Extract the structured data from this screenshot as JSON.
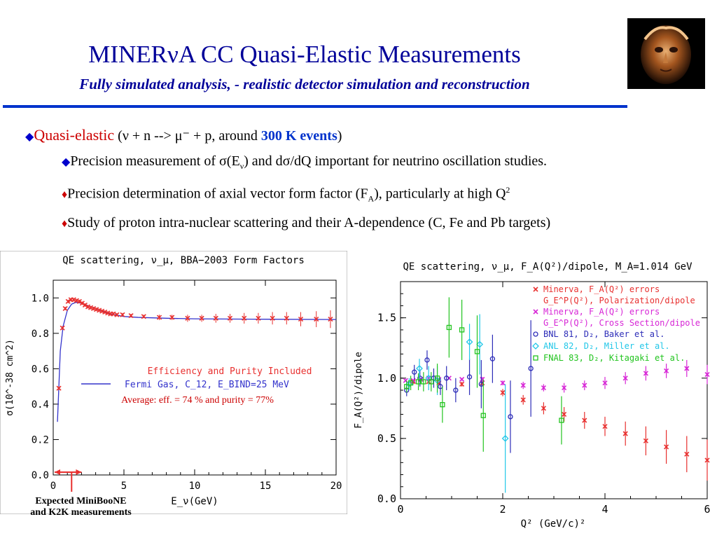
{
  "header": {
    "title": "MINERνA CC Quasi-Elastic Measurements",
    "subtitle": "Fully simulated analysis, - realistic detector simulation and reconstruction"
  },
  "bullets": {
    "main_label": "Quasi-elastic",
    "main_reaction": "(ν + n --> μ⁻ + p, around ",
    "main_events": "300 K events",
    "main_close": ")",
    "sub1_a": "Precision measurement of σ(E",
    "sub1_sub": "ν",
    "sub1_b": ") and dσ/dQ important for neutrino oscillation studies.",
    "sub2_a": "Precision determination of axial vector form factor (F",
    "sub2_sub": "A",
    "sub2_b": "), particularly at high Q",
    "sub2_sup": "2",
    "sub3": "Study of proton intra-nuclear scattering and their A-dependence (C, Fe and Pb targets)"
  },
  "annotation": {
    "line1": "Expected MiniBooNE",
    "line2": "and K2K measurements"
  },
  "chart_data": [
    {
      "type": "line",
      "title": "QE scattering, ν_μ, BBA−2003 Form Factors",
      "xlabel": "E_ν(GeV)",
      "ylabel": "σ(10^-38 cm^2)",
      "xlim": [
        0,
        20
      ],
      "ylim": [
        0,
        1.1
      ],
      "xticks": [
        "0",
        "5",
        "10",
        "15",
        "20"
      ],
      "yticks": [
        "0.0",
        "0.2",
        "0.4",
        "0.6",
        "0.8",
        "1.0"
      ],
      "xtick_values": [
        0,
        5,
        10,
        15,
        20
      ],
      "ytick_values": [
        0,
        0.2,
        0.4,
        0.6,
        0.8,
        1.0
      ],
      "legend": {
        "label1": "Efficiency and Purity Included",
        "label2": "Fermi Gas, C_12, E_BIND=25 MeV",
        "label3": "Average: eff. = 74 % and purity = 77%"
      },
      "colors": {
        "curve": "#3333cc",
        "points": "#e8302f",
        "legend_red": "#e8302f",
        "legend_blue": "#3333cc",
        "arrow": "#e8302f"
      },
      "curve": {
        "x": [
          0.3,
          0.5,
          0.7,
          1.0,
          1.3,
          1.6,
          2.0,
          3.0,
          4.0,
          5.0,
          6.0,
          8.0,
          10.0,
          14.0,
          20.0
        ],
        "y": [
          0.3,
          0.7,
          0.84,
          0.93,
          0.965,
          0.975,
          0.97,
          0.94,
          0.91,
          0.895,
          0.89,
          0.885,
          0.882,
          0.88,
          0.878
        ]
      },
      "series": [
        {
          "x": [
            0.4,
            0.65,
            0.85,
            1.05,
            1.25,
            1.45,
            1.65,
            1.85,
            2.05,
            2.25,
            2.45,
            2.65,
            2.85,
            3.05,
            3.25,
            3.45,
            3.65,
            3.85,
            4.05,
            4.25,
            4.5,
            4.9,
            5.5,
            6.4,
            7.5,
            8.4,
            9.5,
            10.5,
            11.5,
            12.5,
            13.5,
            14.5,
            15.5,
            16.5,
            17.5,
            18.6,
            19.6
          ],
          "y": [
            0.49,
            0.83,
            0.94,
            0.98,
            0.99,
            0.99,
            0.985,
            0.98,
            0.97,
            0.96,
            0.95,
            0.945,
            0.94,
            0.935,
            0.93,
            0.925,
            0.92,
            0.915,
            0.91,
            0.91,
            0.905,
            0.905,
            0.9,
            0.895,
            0.89,
            0.89,
            0.885,
            0.885,
            0.885,
            0.885,
            0.885,
            0.885,
            0.885,
            0.885,
            0.88,
            0.88,
            0.88
          ],
          "err": [
            0.01,
            0.01,
            0.01,
            0.01,
            0.01,
            0.01,
            0.01,
            0.01,
            0.01,
            0.01,
            0.01,
            0.01,
            0.01,
            0.01,
            0.01,
            0.01,
            0.01,
            0.01,
            0.01,
            0.01,
            0.01,
            0.01,
            0.01,
            0.01,
            0.015,
            0.015,
            0.02,
            0.02,
            0.025,
            0.025,
            0.03,
            0.03,
            0.035,
            0.035,
            0.04,
            0.045,
            0.05
          ]
        }
      ],
      "arrow_range": [
        0,
        2
      ]
    },
    {
      "type": "scatter",
      "title": "QE scattering, ν_μ, F_A(Q²)/dipole, M_A=1.014 GeV",
      "xlabel": "Q² (GeV/c)²",
      "ylabel": "F_A(Q²)/dipole",
      "xlim": [
        0,
        6
      ],
      "ylim": [
        0,
        1.8
      ],
      "xticks": [
        "0",
        "2",
        "4",
        "6"
      ],
      "yticks": [
        "0.0",
        "0.5",
        "1.0",
        "1.5"
      ],
      "xtick_values": [
        0,
        2,
        4,
        6
      ],
      "ytick_values": [
        0,
        0.5,
        1.0,
        1.5
      ],
      "legend_position": "top-right",
      "legend": {
        "l1": "Minerva, F_A(Q²) errors",
        "l2": "G_E^P(Q²), Polarization/dipole",
        "l3": "Minerva, F_A(Q²) errors",
        "l4": "G_E^P(Q²), Cross Section/dipole",
        "l5": "BNL 81, D₂, Baker et al.",
        "l6": "ANL 82, D₂, Miller et al.",
        "l7": "FNAL 83, D₂, Kitagaki et al."
      },
      "colors": {
        "red": "#e8302f",
        "magenta": "#d726d6",
        "blue": "#2d2db8",
        "cyan": "#22c7e8",
        "green": "#22c41f"
      },
      "series": [
        {
          "name": "Minerva, F_A(Q²) errors (Polarization/dipole)",
          "marker": "x",
          "color_key": "red",
          "x": [
            0.25,
            0.55,
            0.75,
            1.2,
            1.6,
            2.0,
            2.4,
            2.8,
            3.2,
            3.6,
            4.0,
            4.4,
            4.8,
            5.2,
            5.6,
            6.0
          ],
          "y": [
            0.97,
            0.97,
            0.96,
            0.95,
            0.96,
            0.88,
            0.82,
            0.75,
            0.7,
            0.65,
            0.6,
            0.54,
            0.48,
            0.43,
            0.37,
            0.32
          ],
          "err": [
            0.02,
            0.02,
            0.02,
            0.02,
            0.02,
            0.03,
            0.04,
            0.05,
            0.06,
            0.07,
            0.08,
            0.1,
            0.12,
            0.14,
            0.15,
            0.17
          ]
        },
        {
          "name": "Minerva, F_A(Q²) errors (Cross Section/dipole)",
          "marker": "x",
          "color_key": "magenta",
          "x": [
            0.1,
            0.25,
            0.4,
            0.55,
            0.75,
            0.95,
            1.2,
            1.6,
            2.0,
            2.4,
            2.8,
            3.2,
            3.6,
            4.0,
            4.4,
            4.8,
            5.2,
            5.6,
            6.0
          ],
          "y": [
            0.98,
            0.98,
            0.99,
            1.0,
            0.99,
            1.0,
            0.99,
            0.99,
            0.96,
            0.94,
            0.92,
            0.92,
            0.94,
            0.96,
            1.0,
            1.04,
            1.06,
            1.08,
            1.03
          ],
          "err": [
            0.01,
            0.01,
            0.01,
            0.01,
            0.01,
            0.01,
            0.01,
            0.02,
            0.02,
            0.03,
            0.03,
            0.04,
            0.04,
            0.05,
            0.05,
            0.06,
            0.06,
            0.07,
            0.08
          ]
        },
        {
          "name": "BNL 81, D₂, Baker et al.",
          "marker": "circle",
          "color_key": "blue",
          "x": [
            0.12,
            0.27,
            0.38,
            0.52,
            0.65,
            0.78,
            0.9,
            1.08,
            1.35,
            1.58,
            1.8,
            2.15,
            2.55
          ],
          "y": [
            0.9,
            1.05,
            1.0,
            1.15,
            1.0,
            0.93,
            1.0,
            0.9,
            1.01,
            0.95,
            1.16,
            0.68,
            1.08
          ],
          "err": [
            0.05,
            0.06,
            0.07,
            0.08,
            0.08,
            0.07,
            0.1,
            0.1,
            0.15,
            0.2,
            0.2,
            0.3,
            0.4
          ]
        },
        {
          "name": "ANL 82, D₂, Miller et al.",
          "marker": "diamond",
          "color_key": "cyan",
          "x": [
            0.17,
            0.37,
            0.55,
            0.72,
            1.35,
            1.55,
            2.05
          ],
          "y": [
            0.95,
            1.08,
            1.0,
            0.98,
            1.3,
            1.28,
            0.5
          ],
          "err": [
            0.05,
            0.08,
            0.1,
            0.12,
            0.15,
            0.25,
            0.45
          ]
        },
        {
          "name": "FNAL 83, D₂, Kitagaki et al.",
          "marker": "square",
          "color_key": "green",
          "x": [
            0.12,
            0.2,
            0.35,
            0.45,
            0.6,
            0.72,
            0.82,
            0.95,
            1.2,
            1.5,
            1.62,
            3.15
          ],
          "y": [
            0.93,
            0.96,
            0.97,
            0.97,
            0.97,
            1.0,
            0.78,
            1.42,
            1.4,
            1.22,
            0.69,
            0.65
          ],
          "err": [
            0.05,
            0.06,
            0.07,
            0.08,
            0.08,
            0.12,
            0.15,
            0.25,
            0.25,
            0.3,
            0.3,
            0.2
          ]
        }
      ]
    }
  ]
}
